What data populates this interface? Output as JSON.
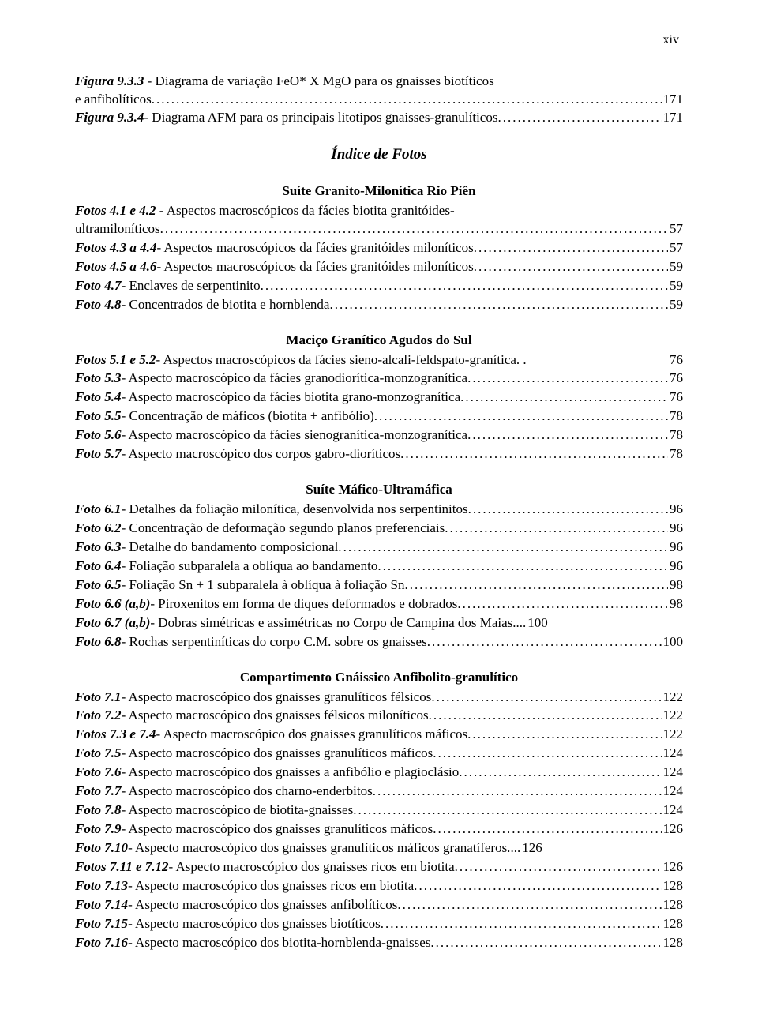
{
  "pageNumber": "xiv",
  "topEntries": [
    {
      "label": "Figura 9.3.3",
      "text": " - Diagrama de variação FeO* X MgO para os gnaisses biotíticos",
      "cont": "e anfibolíticos.",
      "page": "171"
    },
    {
      "label": "Figura 9.3.4",
      "text": " - Diagrama AFM para os principais litotipos gnaisses-granulíticos.",
      "page": "171"
    }
  ],
  "mainHeading": "Índice de Fotos",
  "sections": [
    {
      "title": "Suíte Granito-Milonítica Rio Piên",
      "entries": [
        {
          "label": "Fotos 4.1 e 4.2",
          "text": " - Aspectos macroscópicos da fácies biotita granitóides-",
          "cont": "ultramiloníticos.",
          "page": "57"
        },
        {
          "label": "Fotos 4.3 a 4.4",
          "text": " - Aspectos macroscópicos da fácies granitóides miloníticos.",
          "page": "57"
        },
        {
          "label": "Fotos 4.5 a 4.6",
          "text": " - Aspectos macroscópicos da fácies granitóides miloníticos.",
          "page": "59"
        },
        {
          "label": "Foto 4.7",
          "text": " - Enclaves de serpentinito.",
          "page": "59"
        },
        {
          "label": "Foto 4.8",
          "text": " - Concentrados de biotita e hornblenda.",
          "page": "59"
        }
      ]
    },
    {
      "title": "Maciço Granítico Agudos do Sul",
      "entries": [
        {
          "label": "Fotos 5.1 e 5.2",
          "text": " - Aspectos macroscópicos da fácies sieno-alcali-feldspato-granítica. .",
          "page": "76",
          "nodots": true
        },
        {
          "label": "Foto 5.3",
          "text": " - Aspecto macroscópico da fácies granodiorítica-monzogranítica.",
          "page": "76"
        },
        {
          "label": "Foto 5.4",
          "text": " - Aspecto macroscópico da fácies biotita grano-monzogranítica.",
          "page": "76"
        },
        {
          "label": "Foto 5.5",
          "text": " - Concentração de máficos (biotita + anfibólio).",
          "page": "78"
        },
        {
          "label": "Foto 5.6",
          "text": " - Aspecto macroscópico da fácies sienogranítica-monzogranítica.",
          "page": "78"
        },
        {
          "label": "Foto 5.7",
          "text": " - Aspecto macroscópico dos corpos gabro-dioríticos.",
          "page": "78"
        }
      ]
    },
    {
      "title": "Suíte Máfico-Ultramáfica",
      "entries": [
        {
          "label": "Foto 6.1",
          "text": " - Detalhes da foliação milonítica, desenvolvida nos serpentinitos.",
          "page": "96"
        },
        {
          "label": "Foto 6.2",
          "text": " - Concentração de deformação segundo planos preferenciais.",
          "page": "96"
        },
        {
          "label": "Foto 6.3",
          "text": " - Detalhe do bandamento composicional.",
          "page": "96"
        },
        {
          "label": "Foto 6.4",
          "text": " - Foliação subparalela a oblíqua ao bandamento.",
          "page": "96"
        },
        {
          "label": "Foto 6.5",
          "text": " - Foliação Sn + 1 subparalela à oblíqua à foliação Sn.",
          "page": "98"
        },
        {
          "label": "Foto 6.6 (a,b)",
          "text": " - Piroxenitos em forma de diques deformados e dobrados.",
          "page": "98"
        },
        {
          "label": "Foto 6.7 (a,b)",
          "text": " - Dobras simétricas e assimétricas no Corpo de Campina dos Maias.",
          "page": "100",
          "shortdots": true
        },
        {
          "label": "Foto 6.8",
          "text": " - Rochas serpentiníticas do corpo C.M. sobre os gnaisses.",
          "page": "100"
        }
      ]
    },
    {
      "title": "Compartimento Gnáissico Anfibolito-granulítico",
      "entries": [
        {
          "label": "Foto 7.1",
          "text": " - Aspecto macroscópico dos gnaisses granulíticos félsicos.",
          "page": "122"
        },
        {
          "label": "Foto 7.2",
          "text": " - Aspecto macroscópico dos gnaisses félsicos miloníticos.",
          "page": "122"
        },
        {
          "label": "Fotos 7.3 e 7.4",
          "text": " - Aspecto macroscópico dos gnaisses granulíticos máficos.",
          "page": "122"
        },
        {
          "label": "Foto 7.5",
          "text": " - Aspecto macroscópico dos gnaisses granulíticos máficos.",
          "page": "124"
        },
        {
          "label": "Foto 7.6",
          "text": " - Aspecto macroscópico dos gnaisses a anfibólio e plagioclásio.",
          "page": "124"
        },
        {
          "label": "Foto 7.7",
          "text": " - Aspecto macroscópico dos charno-enderbitos.",
          "page": "124"
        },
        {
          "label": "Foto 7.8",
          "text": " - Aspecto macroscópico de biotita-gnaisses.",
          "page": "124"
        },
        {
          "label": "Foto 7.9",
          "text": " - Aspecto macroscópico dos gnaisses granulíticos máficos.",
          "page": "126"
        },
        {
          "label": "Foto 7.10",
          "text": " - Aspecto macroscópico dos gnaisses granulíticos máficos granatíferos.",
          "page": "126",
          "shortdots": true
        },
        {
          "label": "Fotos 7.11 e 7.12",
          "text": " - Aspecto macroscópico dos gnaisses ricos em biotita.",
          "page": "126"
        },
        {
          "label": "Foto 7.13",
          "text": " - Aspecto macroscópico dos gnaisses ricos em biotita.",
          "page": "128"
        },
        {
          "label": "Foto 7.14",
          "text": " - Aspecto macroscópico dos gnaisses anfibolíticos.",
          "page": "128"
        },
        {
          "label": "Foto 7.15",
          "text": " - Aspecto macroscópico dos gnaisses biotíticos.",
          "page": "128"
        },
        {
          "label": "Foto 7.16",
          "text": " - Aspecto macroscópico dos biotita-hornblenda-gnaisses.",
          "page": "128"
        }
      ]
    }
  ]
}
